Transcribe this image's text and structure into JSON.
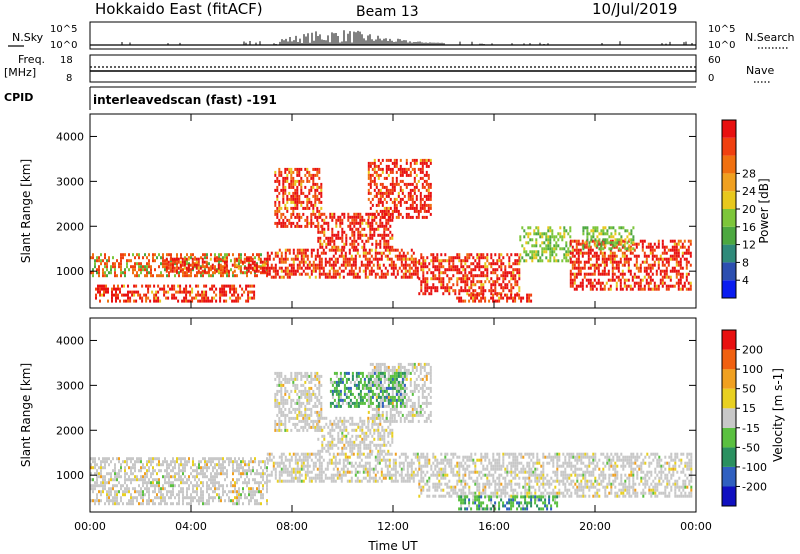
{
  "header": {
    "station": "Hokkaido East (fitACF)",
    "beam": "Beam 13",
    "date": "10/Jul/2019"
  },
  "status_panels": {
    "nsky_label": "N.Sky",
    "nsearch_label": "N.Search",
    "count_ticks": [
      "10^5",
      "10^0"
    ],
    "freq_label": "Freq.",
    "freq_unit": "[MHz]",
    "freq_ticks": [
      "18",
      "8"
    ],
    "nave_label": "Nave",
    "nave_ticks": [
      "60",
      "0"
    ],
    "cpid_label": "CPID",
    "cpid_value": "interleavedscan (fast) -191"
  },
  "chart_data": [
    {
      "type": "heatmap",
      "panel": "power",
      "xlabel": "",
      "ylabel": "Slant Range [km]",
      "x_ticks": [
        "00:00",
        "04:00",
        "08:00",
        "12:00",
        "16:00",
        "20:00",
        "00:00"
      ],
      "y_ticks": [
        "1000",
        "2000",
        "3000",
        "4000"
      ],
      "xlim_hours": [
        0,
        24
      ],
      "ylim_km": [
        180,
        4500
      ],
      "colorbar": {
        "label": "Power [dB]",
        "ticks": [
          "4",
          "8",
          "12",
          "16",
          "20",
          "24",
          "28"
        ],
        "colors": [
          "#0a1cf0",
          "#2c4fb0",
          "#2f8a7a",
          "#4ca840",
          "#7dc63a",
          "#e8c81e",
          "#f0a020",
          "#f07010",
          "#f04010",
          "#e81010"
        ]
      },
      "regions": [
        {
          "t0": 0.0,
          "t1": 7.0,
          "r0": 900,
          "r1": 1400,
          "level": "med"
        },
        {
          "t0": 0.2,
          "t1": 6.5,
          "r0": 350,
          "r1": 700,
          "level": "high"
        },
        {
          "t0": 3.0,
          "t1": 7.0,
          "r0": 1000,
          "r1": 1300,
          "level": "high"
        },
        {
          "t0": 7.0,
          "t1": 13.0,
          "r0": 850,
          "r1": 1500,
          "level": "high"
        },
        {
          "t0": 7.3,
          "t1": 9.2,
          "r0": 2000,
          "r1": 3300,
          "level": "high"
        },
        {
          "t0": 9.0,
          "t1": 12.0,
          "r0": 1500,
          "r1": 2300,
          "level": "high"
        },
        {
          "t0": 11.0,
          "t1": 13.5,
          "r0": 2200,
          "r1": 3500,
          "level": "high"
        },
        {
          "t0": 13.0,
          "t1": 17.0,
          "r0": 500,
          "r1": 1400,
          "level": "high"
        },
        {
          "t0": 14.5,
          "t1": 17.5,
          "r0": 300,
          "r1": 500,
          "level": "high"
        },
        {
          "t0": 17.0,
          "t1": 19.0,
          "r0": 1200,
          "r1": 2000,
          "level": "low"
        },
        {
          "t0": 19.0,
          "t1": 23.8,
          "r0": 600,
          "r1": 1700,
          "level": "high"
        },
        {
          "t0": 19.5,
          "t1": 21.5,
          "r0": 1500,
          "r1": 2000,
          "level": "low"
        }
      ]
    },
    {
      "type": "heatmap",
      "panel": "velocity",
      "xlabel": "Time UT",
      "ylabel": "Slant Range [km]",
      "x_ticks": [
        "00:00",
        "04:00",
        "08:00",
        "12:00",
        "16:00",
        "20:00",
        "00:00"
      ],
      "y_ticks": [
        "1000",
        "2000",
        "3000",
        "4000"
      ],
      "xlim_hours": [
        0,
        24
      ],
      "ylim_km": [
        180,
        4500
      ],
      "colorbar": {
        "label": "Velocity [m s-1]",
        "ticks": [
          "200",
          "100",
          "50",
          "15",
          "-15",
          "-50",
          "-100",
          "-200"
        ],
        "colors": [
          "#1010c0",
          "#3060c0",
          "#2a9060",
          "#5ac040",
          "#c8c8c8",
          "#e8d020",
          "#f0a020",
          "#f06010",
          "#e81010"
        ]
      },
      "regions": [
        {
          "t0": 0.0,
          "t1": 7.0,
          "r0": 350,
          "r1": 1400,
          "level": "gray"
        },
        {
          "t0": 7.0,
          "t1": 13.0,
          "r0": 850,
          "r1": 1500,
          "level": "gray"
        },
        {
          "t0": 7.3,
          "t1": 9.2,
          "r0": 2000,
          "r1": 3300,
          "level": "gray"
        },
        {
          "t0": 9.0,
          "t1": 12.0,
          "r0": 1500,
          "r1": 2300,
          "level": "gray"
        },
        {
          "t0": 11.0,
          "t1": 13.5,
          "r0": 2200,
          "r1": 3500,
          "level": "gray"
        },
        {
          "t0": 13.0,
          "t1": 23.8,
          "r0": 500,
          "r1": 1500,
          "level": "gray"
        },
        {
          "t0": 14.5,
          "t1": 18.5,
          "r0": 250,
          "r1": 550,
          "level": "green"
        },
        {
          "t0": 9.5,
          "t1": 12.5,
          "r0": 2500,
          "r1": 3300,
          "level": "green"
        }
      ]
    }
  ]
}
